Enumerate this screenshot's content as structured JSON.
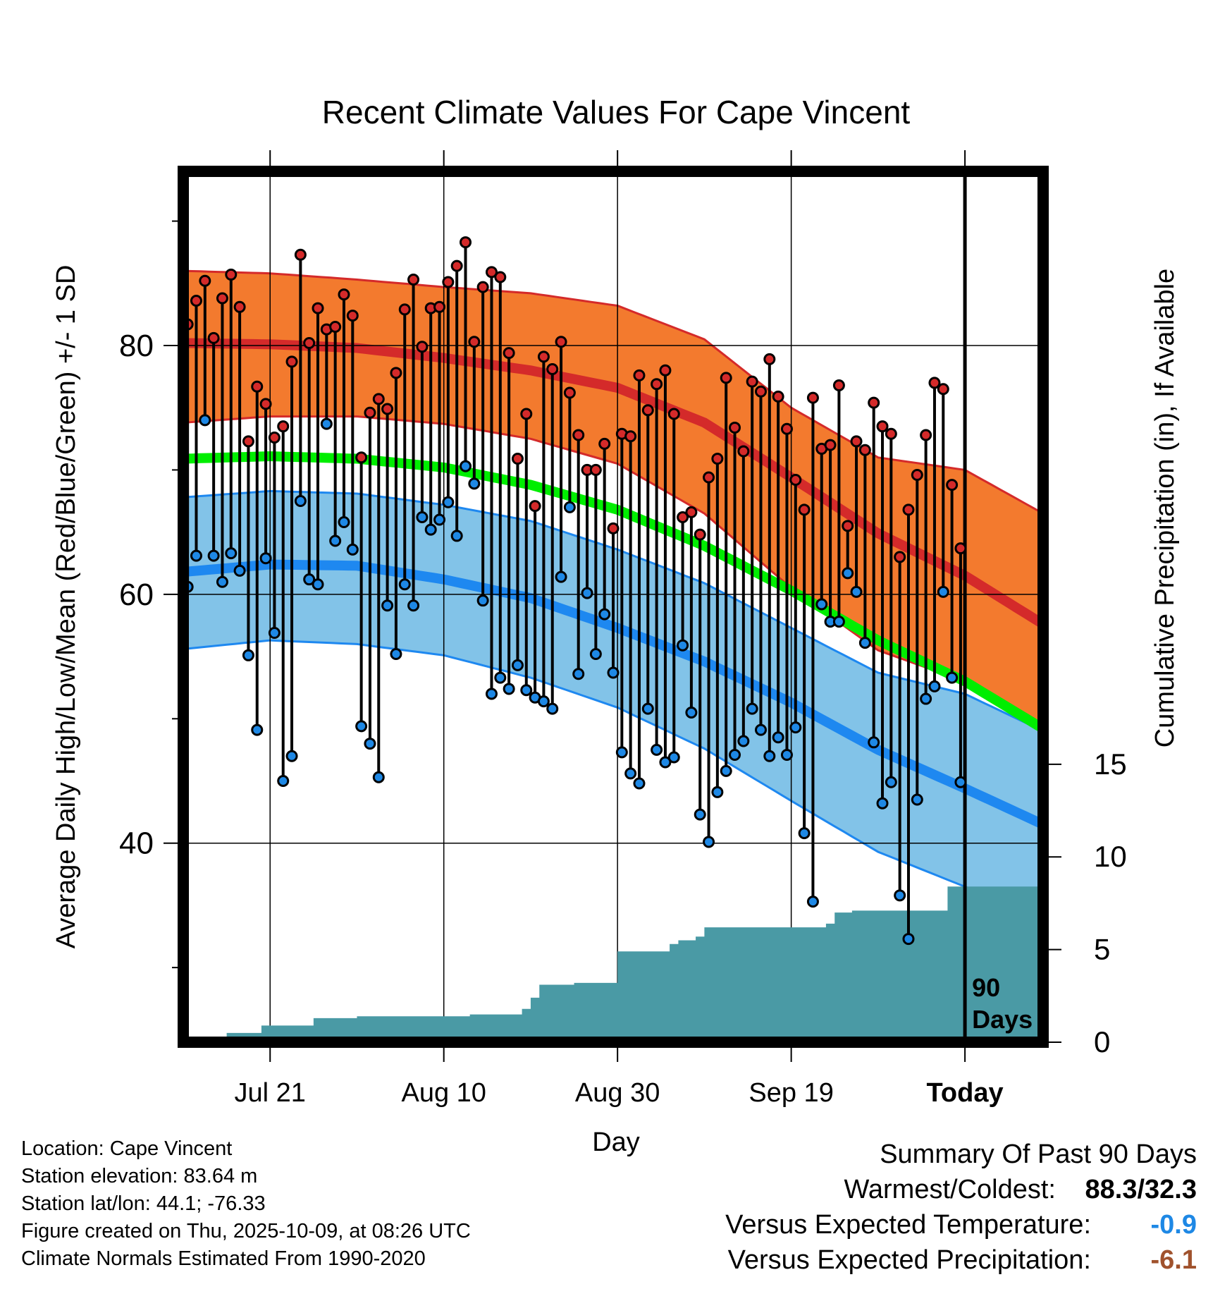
{
  "chart_data": {
    "type": "line",
    "title": "Recent Climate Values For Cape Vincent",
    "xlabel": "Day",
    "ylabel": "Average Daily High/Low/Mean (Red/Blue/Green) +/- 1 SD",
    "ylabel_right": "Cumulative Precipitation (in), If Available",
    "x_range": [
      -90,
      9
    ],
    "ylim": [
      24,
      94
    ],
    "y2lim": [
      0,
      47
    ],
    "x_ticks": [
      {
        "day": -80,
        "label": "Jul 21"
      },
      {
        "day": -60,
        "label": "Aug 10"
      },
      {
        "day": -40,
        "label": "Aug 30"
      },
      {
        "day": -20,
        "label": "Sep 19"
      },
      {
        "day": 0,
        "label": "Today"
      }
    ],
    "y_ticks": [
      40,
      60,
      80
    ],
    "y2_ticks": [
      0,
      5,
      10,
      15
    ],
    "window_label": "90 Days",
    "normals": {
      "days": [
        -90,
        -80,
        -70,
        -60,
        -50,
        -40,
        -30,
        -20,
        -10,
        0,
        9
      ],
      "high_upper": [
        86.0,
        85.8,
        85.3,
        84.7,
        84.2,
        83.2,
        80.5,
        75.0,
        71.0,
        70.0,
        66.5
      ],
      "high_mean": [
        80.2,
        80.1,
        79.8,
        79.0,
        78.0,
        76.6,
        73.8,
        69.4,
        64.9,
        61.5,
        57.6
      ],
      "high_lower": [
        73.8,
        74.3,
        74.3,
        73.7,
        72.5,
        70.5,
        66.5,
        60.5,
        55.5,
        53.0,
        48.6
      ],
      "mean": [
        70.9,
        71.1,
        70.9,
        70.2,
        68.8,
        66.8,
        63.9,
        60.3,
        56.3,
        53.0,
        49.2
      ],
      "low_upper": [
        67.8,
        68.3,
        68.1,
        67.2,
        65.9,
        63.6,
        60.9,
        57.3,
        53.7,
        52.0,
        49.0
      ],
      "low_mean": [
        61.8,
        62.4,
        62.3,
        61.2,
        59.7,
        57.3,
        54.6,
        51.3,
        47.5,
        44.4,
        41.5
      ],
      "low_lower": [
        55.6,
        56.3,
        56.0,
        55.1,
        53.3,
        50.9,
        47.6,
        43.4,
        39.3,
        36.5,
        34.0
      ]
    },
    "series": [
      {
        "name": "Daily High",
        "values": [
          81.7,
          83.6,
          85.2,
          80.6,
          83.8,
          85.7,
          83.1,
          72.3,
          76.7,
          75.3,
          72.6,
          73.5,
          78.7,
          87.3,
          80.2,
          83.0,
          81.3,
          81.5,
          84.1,
          82.4,
          71.0,
          74.6,
          75.7,
          74.9,
          77.8,
          82.9,
          85.3,
          79.9,
          83.0,
          83.1,
          85.1,
          86.4,
          88.3,
          80.3,
          84.7,
          85.9,
          85.5,
          79.4,
          70.9,
          74.5,
          67.1,
          79.1,
          78.1,
          80.3,
          76.2,
          72.8,
          70.0,
          70.0,
          72.1,
          65.3,
          72.9,
          72.7,
          77.6,
          74.8,
          76.9,
          78.0,
          74.5,
          66.2,
          66.6,
          64.8,
          69.4,
          70.9,
          77.4,
          73.4,
          71.5,
          77.1,
          76.3,
          78.9,
          75.9,
          73.3,
          69.2,
          66.8,
          75.8,
          71.7,
          72.0,
          76.8,
          65.5,
          72.3,
          71.6,
          75.4,
          73.5,
          72.9,
          63.0,
          66.8,
          69.6,
          72.8,
          77.0,
          76.5,
          68.8,
          63.7
        ]
      },
      {
        "name": "Daily Low",
        "values": [
          60.6,
          63.1,
          74.0,
          63.1,
          61.0,
          63.3,
          61.9,
          55.1,
          49.1,
          62.9,
          56.9,
          45.0,
          47.0,
          67.5,
          61.2,
          60.8,
          73.7,
          64.3,
          65.8,
          63.6,
          49.4,
          48.0,
          45.3,
          59.1,
          55.2,
          60.8,
          59.1,
          66.2,
          65.2,
          66.0,
          67.4,
          64.7,
          70.3,
          68.9,
          59.5,
          52.0,
          53.3,
          52.4,
          54.3,
          52.3,
          51.7,
          51.4,
          50.8,
          61.4,
          67.0,
          53.6,
          60.1,
          55.2,
          58.4,
          53.7,
          47.3,
          45.6,
          44.8,
          50.8,
          47.5,
          46.5,
          46.9,
          55.9,
          50.5,
          42.3,
          40.1,
          44.1,
          45.8,
          47.1,
          48.2,
          50.8,
          49.1,
          47.0,
          48.5,
          47.1,
          49.3,
          40.8,
          35.3,
          59.2,
          57.8,
          57.8,
          61.7,
          60.2,
          56.1,
          48.1,
          43.2,
          44.9,
          35.8,
          32.3,
          43.5,
          51.6,
          52.6,
          60.2,
          53.3,
          44.9
        ]
      },
      {
        "name": "Cumulative Precipitation",
        "values": [
          0.0,
          0.0,
          0.0,
          0.0,
          0.0,
          0.5,
          0.5,
          0.5,
          0.5,
          0.9,
          0.9,
          0.9,
          0.9,
          0.9,
          0.9,
          1.3,
          1.3,
          1.3,
          1.3,
          1.3,
          1.4,
          1.4,
          1.4,
          1.4,
          1.4,
          1.4,
          1.4,
          1.4,
          1.4,
          1.4,
          1.4,
          1.4,
          1.4,
          1.5,
          1.5,
          1.5,
          1.5,
          1.5,
          1.5,
          1.8,
          2.4,
          3.1,
          3.1,
          3.1,
          3.1,
          3.2,
          3.2,
          3.2,
          3.2,
          3.2,
          4.9,
          4.9,
          4.9,
          4.9,
          4.9,
          4.9,
          5.3,
          5.5,
          5.5,
          5.7,
          6.2,
          6.2,
          6.2,
          6.2,
          6.2,
          6.2,
          6.2,
          6.2,
          6.2,
          6.2,
          6.2,
          6.2,
          6.2,
          6.2,
          6.4,
          7.0,
          7.0,
          7.1,
          7.1,
          7.1,
          7.1,
          7.1,
          7.1,
          7.1,
          7.1,
          7.1,
          7.1,
          7.1,
          8.4,
          8.4
        ]
      }
    ]
  },
  "colors": {
    "high_band": "#f37a2e",
    "high_line": "#d42a2a",
    "mean_line": "#00ee00",
    "low_band": "#82c3e8",
    "low_line": "#1e88f0",
    "precip": "#4a9aa5",
    "high_dot": "#d42a2a",
    "low_dot": "#1e88e5",
    "frame": "#000000"
  },
  "footer": {
    "location": "Location: Cape Vincent",
    "elevation": "Station elevation: 83.64 m",
    "latlon": "Station lat/lon: 44.1; -76.33",
    "created": "Figure created on Thu, 2025-10-09, at 08:26 UTC",
    "normals": "Climate Normals Estimated From 1990-2020"
  },
  "summary": {
    "title": "Summary Of Past 90 Days",
    "warm_cold_label": "Warmest/Coldest:",
    "warm_cold_value": "88.3/32.3",
    "temp_label": "Versus Expected Temperature:",
    "temp_value": "-0.9",
    "precip_label": "Versus Expected Precipitation:",
    "precip_value": "-6.1"
  }
}
